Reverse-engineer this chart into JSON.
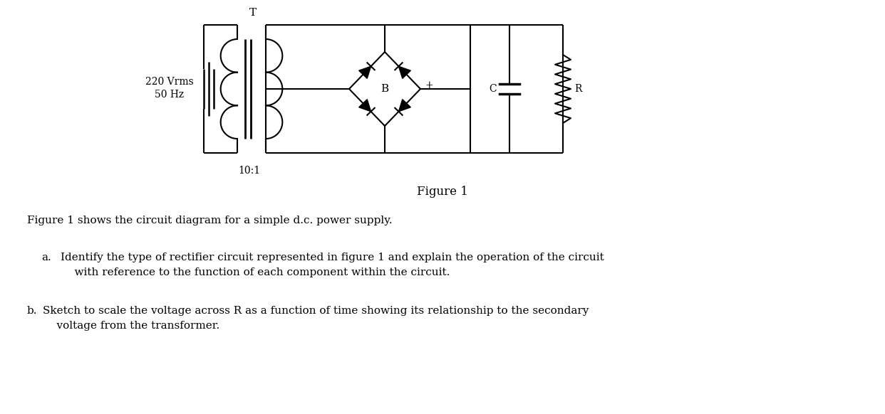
{
  "title": "Figure 1",
  "caption_line1": "Figure 1 shows the circuit diagram for a simple d.c. power supply.",
  "question_a_label": "a.",
  "question_a_text": "Identify the type of rectifier circuit represented in figure 1 and explain the operation of the circuit\n    with reference to the function of each component within the circuit.",
  "question_b_label": "b.",
  "question_b_text": "Sketch to scale the voltage across R as a function of time showing its relationship to the secondary\n    voltage from the transformer.",
  "label_voltage": "220 Vrms",
  "label_freq": "50 Hz",
  "label_ratio": "10:1",
  "label_T": "T",
  "label_B": "B",
  "label_plus": "+",
  "label_C": "C",
  "label_R": "R",
  "bg_color": "#ffffff",
  "line_color": "#000000",
  "text_color": "#000000",
  "font_size_small": 10,
  "font_size_title": 12,
  "font_size_caption": 11,
  "font_size_questions": 11
}
